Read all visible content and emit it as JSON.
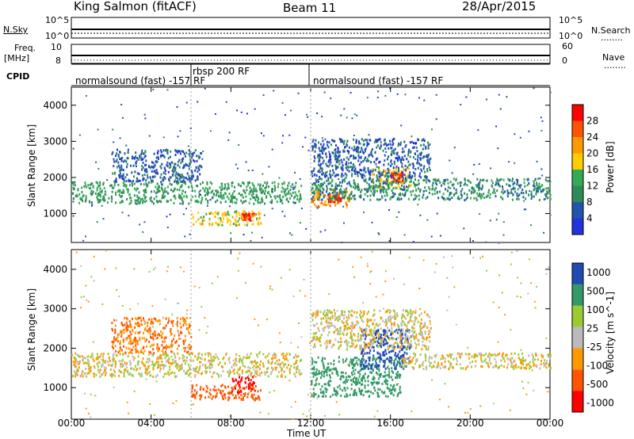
{
  "header": {
    "station": "King Salmon (fitACF)",
    "beam": "Beam 11",
    "date": "28/Apr/2015"
  },
  "left_labels": {
    "nsky": "N.Sky",
    "freq": "Freq.",
    "freq_unit": "[MHz]",
    "cpid": "CPID"
  },
  "right_labels": {
    "nsearch": "N.Search",
    "nave": "Nave",
    "dots": "........"
  },
  "noise_ticks": {
    "left_top": "10^5",
    "left_bottom": "10^0",
    "right_top": "10^5",
    "right_bottom": "10^0"
  },
  "freq_ticks": {
    "left_top": "10",
    "left_bottom": "8",
    "right_top": "60",
    "right_bottom": "0"
  },
  "cpid": {
    "segment_1": "normalsound (fast) -157 RF",
    "segment_2": "rbsp 200 RF",
    "segment_3": "normalsound (fast) -157 RF"
  },
  "x_axis": {
    "label": "Time UT",
    "ticks": [
      "00:00",
      "04:00",
      "08:00",
      "12:00",
      "16:00",
      "20:00",
      "00:00"
    ]
  },
  "colors": {
    "power_scale": [
      "#2233dd",
      "#2255aa",
      "#2e8b57",
      "#33aa55",
      "#ffcc00",
      "#ff9900",
      "#ff5500",
      "#ff0000"
    ],
    "velocity_scale": [
      "#ff0000",
      "#ff5500",
      "#ff9900",
      "#bbbbbb",
      "#99cc33",
      "#339966",
      "#1e4bb4"
    ]
  },
  "chart_data": [
    {
      "type": "heatmap",
      "panel": "power",
      "ylabel": "Slant Range [km]",
      "xlabel": "Time UT",
      "yticks": [
        "1000",
        "2000",
        "3000",
        "4000"
      ],
      "ylim": [
        200,
        4500
      ],
      "xlim_hours": [
        0,
        24
      ],
      "colorbar_label": "Power [dB]",
      "colorbar_ticks": [
        "4",
        "8",
        "12",
        "16",
        "20",
        "24",
        "28"
      ],
      "regions": [
        {
          "t0": 0.0,
          "t1": 11.5,
          "r0": 1300,
          "r1": 1900,
          "level": 12
        },
        {
          "t0": 2.0,
          "t1": 6.5,
          "r0": 1900,
          "r1": 2800,
          "level": 6
        },
        {
          "t0": 6.0,
          "t1": 9.5,
          "r0": 700,
          "r1": 1100,
          "level": 18
        },
        {
          "t0": 8.5,
          "t1": 9.2,
          "r0": 850,
          "r1": 1050,
          "level": 26
        },
        {
          "t0": 12.0,
          "t1": 14.0,
          "r0": 1200,
          "r1": 1700,
          "level": 22
        },
        {
          "t0": 12.8,
          "t1": 13.5,
          "r0": 1350,
          "r1": 1550,
          "level": 28
        },
        {
          "t0": 15.0,
          "t1": 17.0,
          "r0": 1700,
          "r1": 2300,
          "level": 18
        },
        {
          "t0": 16.0,
          "t1": 16.6,
          "r0": 1900,
          "r1": 2150,
          "level": 28
        },
        {
          "t0": 12.0,
          "t1": 24.0,
          "r0": 1400,
          "r1": 2000,
          "level": 10
        },
        {
          "t0": 12.0,
          "t1": 18.0,
          "r0": 2000,
          "r1": 3100,
          "level": 6
        }
      ]
    },
    {
      "type": "heatmap",
      "panel": "velocity",
      "ylabel": "Slant Range [km]",
      "xlabel": "Time UT",
      "yticks": [
        "1000",
        "2000",
        "3000",
        "4000"
      ],
      "ylim": [
        200,
        4500
      ],
      "xlim_hours": [
        0,
        24
      ],
      "colorbar_label": "Velocity [m s^-1]",
      "colorbar_ticks": [
        "1000",
        "500",
        "100",
        "25",
        "-25",
        "-100",
        "-500",
        "-1000"
      ],
      "regions": [
        {
          "t0": 0.0,
          "t1": 11.5,
          "r0": 1300,
          "r1": 1900,
          "level": 0
        },
        {
          "t0": 2.0,
          "t1": 6.0,
          "r0": 1900,
          "r1": 2800,
          "level": -100
        },
        {
          "t0": 6.0,
          "t1": 9.5,
          "r0": 700,
          "r1": 1100,
          "level": -300
        },
        {
          "t0": 8.0,
          "t1": 9.2,
          "r0": 900,
          "r1": 1300,
          "level": -600
        },
        {
          "t0": 12.0,
          "t1": 16.5,
          "r0": 800,
          "r1": 1800,
          "level": 300
        },
        {
          "t0": 14.5,
          "t1": 17.0,
          "r0": 1500,
          "r1": 2500,
          "level": 900
        },
        {
          "t0": 16.5,
          "t1": 24.0,
          "r0": 1500,
          "r1": 1900,
          "level": 0
        },
        {
          "t0": 12.0,
          "t1": 18.0,
          "r0": 2000,
          "r1": 3000,
          "level": 0
        }
      ]
    }
  ]
}
